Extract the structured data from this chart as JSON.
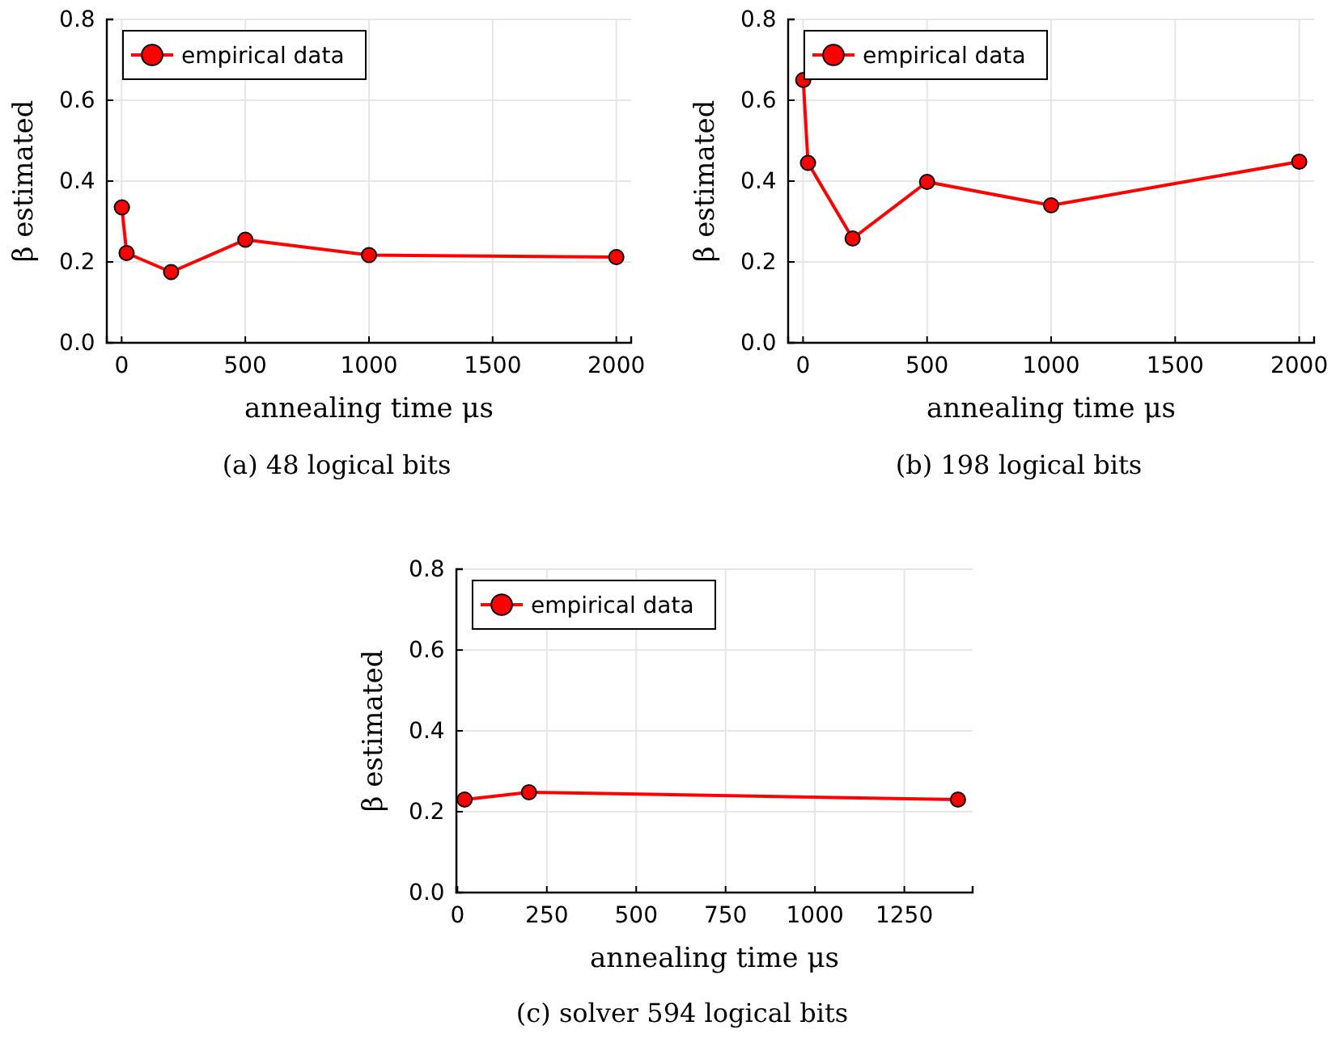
{
  "chart_data": [
    {
      "type": "line",
      "xlabel": "annealing time μs",
      "ylabel": "β estimated",
      "xlim": [
        -60,
        2060
      ],
      "ylim": [
        0,
        0.8
      ],
      "xticks": [
        0,
        500,
        1000,
        1500,
        2000
      ],
      "yticks": [
        {
          "value": 0,
          "label": "0.0"
        },
        {
          "value": 0.2,
          "label": "0.2"
        },
        {
          "value": 0.4,
          "label": "0.4"
        },
        {
          "value": 0.6,
          "label": "0.6"
        },
        {
          "value": 0.8,
          "label": "0.8"
        }
      ],
      "grid": true,
      "legend": "top left",
      "marker": "circle",
      "line_style": "solid",
      "annotations": [
        "(a) 48 logical bits"
      ],
      "series": [
        {
          "name": "empirical data",
          "color": "#ff0000",
          "x": [
            1,
            20,
            200,
            500,
            1000,
            2000
          ],
          "values": [
            0.335,
            0.222,
            0.175,
            0.255,
            0.217,
            0.212
          ]
        }
      ]
    },
    {
      "type": "line",
      "xlabel": "annealing time μs",
      "ylabel": "β estimated",
      "xlim": [
        -60,
        2060
      ],
      "ylim": [
        0,
        0.8
      ],
      "xticks": [
        0,
        500,
        1000,
        1500,
        2000
      ],
      "yticks": [
        {
          "value": 0,
          "label": "0.0"
        },
        {
          "value": 0.2,
          "label": "0.2"
        },
        {
          "value": 0.4,
          "label": "0.4"
        },
        {
          "value": 0.6,
          "label": "0.6"
        },
        {
          "value": 0.8,
          "label": "0.8"
        }
      ],
      "grid": true,
      "legend": "top left",
      "marker": "circle",
      "line_style": "solid",
      "annotations": [
        "(b) 198 logical bits"
      ],
      "series": [
        {
          "name": "empirical data",
          "color": "#ff0000",
          "x": [
            1,
            20,
            200,
            500,
            1000,
            2000
          ],
          "values": [
            0.65,
            0.445,
            0.258,
            0.398,
            0.34,
            0.448
          ]
        }
      ]
    },
    {
      "type": "line",
      "xlabel": "annealing time μs",
      "ylabel": "β estimated",
      "xlim": [
        -3,
        1441
      ],
      "ylim": [
        0,
        0.8
      ],
      "xticks": [
        0,
        250,
        500,
        750,
        1000,
        1250
      ],
      "yticks": [
        {
          "value": 0,
          "label": "0.0"
        },
        {
          "value": 0.2,
          "label": "0.2"
        },
        {
          "value": 0.4,
          "label": "0.4"
        },
        {
          "value": 0.6,
          "label": "0.6"
        },
        {
          "value": 0.8,
          "label": "0.8"
        }
      ],
      "grid": true,
      "legend": "top left",
      "marker": "circle",
      "line_style": "solid",
      "annotations": [
        "(c) solver 594 logical bits"
      ],
      "series": [
        {
          "name": "empirical data",
          "color": "#ff0000",
          "x": [
            20,
            200,
            1400
          ],
          "values": [
            0.23,
            0.248,
            0.23
          ]
        }
      ]
    }
  ]
}
